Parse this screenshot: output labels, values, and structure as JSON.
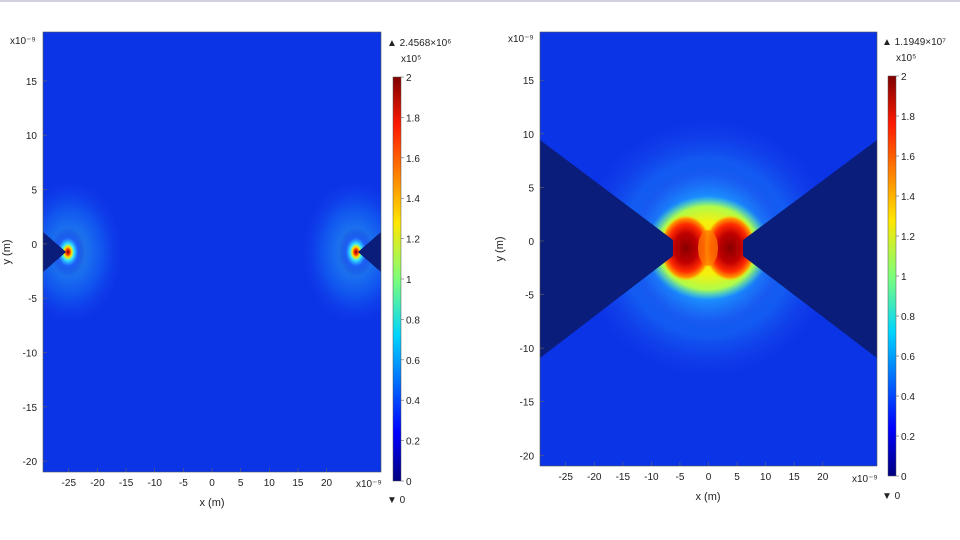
{
  "chart_data": [
    {
      "type": "heatmap",
      "title": "",
      "xlabel": "x (m)",
      "ylabel": "y (m)",
      "x_exponent": "x10⁻⁹",
      "y_exponent": "x10⁻⁹",
      "xlim": [
        -29.5,
        29.5
      ],
      "ylim": [
        -21,
        19.5
      ],
      "x_ticks": [
        -25,
        -20,
        -15,
        -10,
        -5,
        0,
        5,
        10,
        15,
        20
      ],
      "y_ticks": [
        -20,
        -15,
        -10,
        -5,
        0,
        5,
        10,
        15
      ],
      "colorbar": {
        "max_label": "▲ 2.4568×10⁶",
        "min_label": "▼ 0",
        "scale_label": "x10⁵",
        "range": [
          0,
          2
        ],
        "ticks": [
          "2",
          "1.8",
          "1.6",
          "1.4",
          "1.2",
          "1",
          "0.8",
          "0.6",
          "0.4",
          "0.2",
          "0"
        ]
      },
      "features": {
        "description": "two conical tips with small gap, field concentrated at tips",
        "hotspots": [
          {
            "x": -26,
            "y": 0
          },
          {
            "x": 26,
            "y": 0
          }
        ]
      }
    },
    {
      "type": "heatmap",
      "title": "",
      "xlabel": "x (m)",
      "ylabel": "y (m)",
      "x_exponent": "x10⁻⁹",
      "y_exponent": "x10⁻⁹",
      "xlim": [
        -29.5,
        29.5
      ],
      "ylim": [
        -21,
        19.5
      ],
      "x_ticks": [
        -25,
        -20,
        -15,
        -10,
        -5,
        0,
        5,
        10,
        15,
        20
      ],
      "y_ticks": [
        -20,
        -15,
        -10,
        -5,
        0,
        5,
        10,
        15
      ],
      "colorbar": {
        "max_label": "▲ 1.1949×10⁷",
        "min_label": "▼ 0",
        "scale_label": "x10⁵",
        "range": [
          0,
          2
        ],
        "ticks": [
          "2",
          "1.8",
          "1.6",
          "1.4",
          "1.2",
          "1",
          "0.8",
          "0.6",
          "0.4",
          "0.2",
          "0"
        ]
      },
      "features": {
        "description": "bowtie antenna with narrow gap, strong field enhancement in gap",
        "hotspots": [
          {
            "x": -3,
            "y": 0
          },
          {
            "x": 3,
            "y": 0
          }
        ]
      }
    }
  ]
}
